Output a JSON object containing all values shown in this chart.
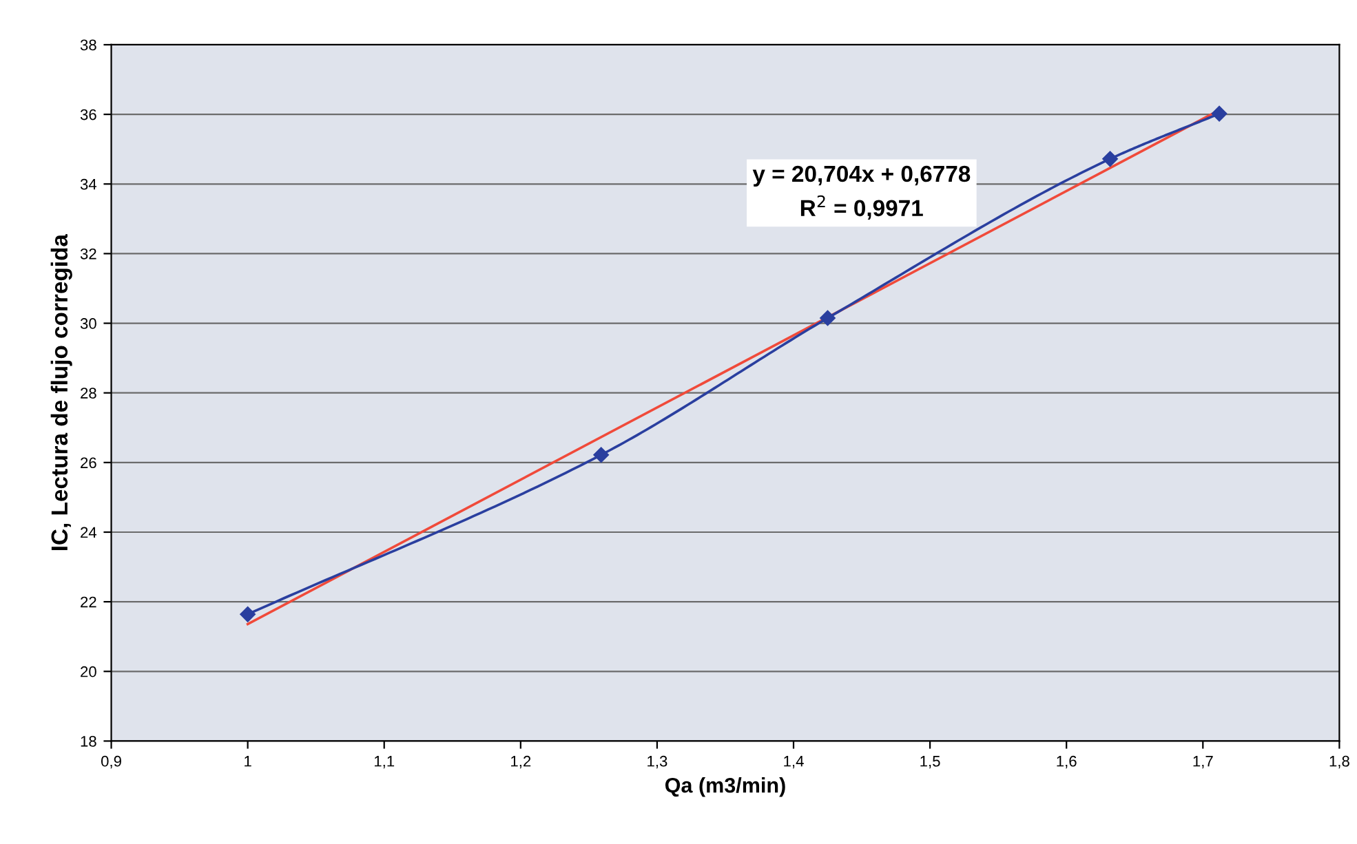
{
  "chart_data": {
    "type": "line",
    "xlabel": "Qa (m3/min)",
    "ylabel": "IC, Lectura de flujo corregida",
    "series": [
      {
        "color": "#2a3f9f",
        "marker": "diamond",
        "x": [
          1.0,
          1.259,
          1.425,
          1.632,
          1.712
        ],
        "values": [
          21.64,
          26.22,
          30.15,
          34.72,
          36.02
        ]
      },
      {
        "color": "#f04a3a",
        "marker": "none",
        "x": [
          1.0,
          1.712
        ],
        "values": [
          21.36,
          36.12
        ]
      }
    ],
    "xlim": [
      0.9,
      1.8
    ],
    "xticks": [
      {
        "value": 0.9,
        "label": "0,9"
      },
      {
        "value": 1,
        "label": "1"
      },
      {
        "value": 1.1,
        "label": "1,1"
      },
      {
        "value": 1.2,
        "label": "1,2"
      },
      {
        "value": 1.3,
        "label": "1,3"
      },
      {
        "value": 1.4,
        "label": "1,4"
      },
      {
        "value": 1.5,
        "label": "1,5"
      },
      {
        "value": 1.6,
        "label": "1,6"
      },
      {
        "value": 1.7,
        "label": "1,7"
      },
      {
        "value": 1.8,
        "label": "1,8"
      }
    ],
    "ylim": [
      18,
      38
    ],
    "yticks": [
      18,
      20,
      22,
      24,
      26,
      28,
      30,
      32,
      34,
      36,
      38
    ],
    "grid": "y",
    "annotations": [
      "y = 20,704x + 0,6778\nR$^{2}$ = 0,9971"
    ]
  }
}
